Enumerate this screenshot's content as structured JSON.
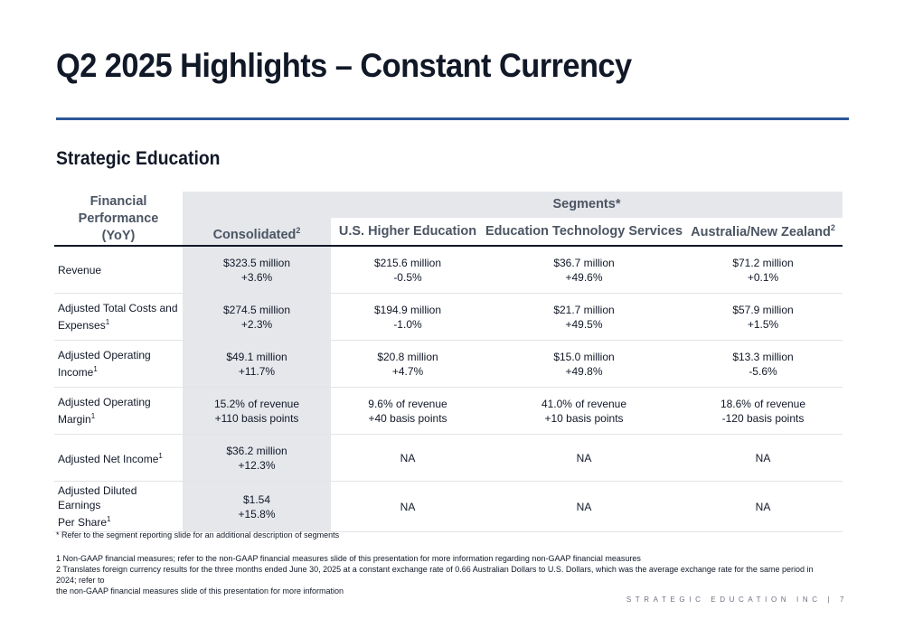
{
  "title": "Q2 2025 Highlights – Constant Currency",
  "section_title": "Strategic Education",
  "table": {
    "fin_perf_header_1": "Financial Performance",
    "fin_perf_header_2": "(YoY)",
    "consolidated_header": "Consolidated",
    "consolidated_sup": "2",
    "segments_header": "Segments*",
    "segment_headers": {
      "us": "U.S. Higher Education",
      "ets": "Education Technology Services",
      "anz": "Australia/New Zealand",
      "anz_sup": "2"
    },
    "rows": [
      {
        "label_1": "Revenue",
        "label_2": "",
        "sup": "",
        "cons_1": "$323.5 million",
        "cons_2": "+3.6%",
        "us_1": "$215.6 million",
        "us_2": "-0.5%",
        "ets_1": "$36.7 million",
        "ets_2": "+49.6%",
        "anz_1": "$71.2 million",
        "anz_2": "+0.1%"
      },
      {
        "label_1": "Adjusted Total Costs and",
        "label_2": "Expenses",
        "sup": "1",
        "cons_1": "$274.5 million",
        "cons_2": "+2.3%",
        "us_1": "$194.9 million",
        "us_2": "-1.0%",
        "ets_1": "$21.7 million",
        "ets_2": "+49.5%",
        "anz_1": "$57.9 million",
        "anz_2": "+1.5%"
      },
      {
        "label_1": "Adjusted Operating Income",
        "label_2": "",
        "sup": "1",
        "cons_1": "$49.1 million",
        "cons_2": "+11.7%",
        "us_1": "$20.8 million",
        "us_2": "+4.7%",
        "ets_1": "$15.0 million",
        "ets_2": "+49.8%",
        "anz_1": "$13.3 million",
        "anz_2": "-5.6%"
      },
      {
        "label_1": "Adjusted Operating Margin",
        "label_2": "",
        "sup": "1",
        "cons_1": "15.2% of revenue",
        "cons_2": "+110 basis points",
        "us_1": "9.6% of revenue",
        "us_2": "+40 basis points",
        "ets_1": "41.0% of revenue",
        "ets_2": "+10 basis points",
        "anz_1": "18.6% of revenue",
        "anz_2": "-120 basis points"
      },
      {
        "label_1": "Adjusted Net Income",
        "label_2": "",
        "sup": "1",
        "cons_1": "$36.2 million",
        "cons_2": "+12.3%",
        "us_1": "NA",
        "us_2": "",
        "ets_1": "NA",
        "ets_2": "",
        "anz_1": "NA",
        "anz_2": ""
      },
      {
        "label_1": "Adjusted Diluted Earnings",
        "label_2": "Per Share",
        "sup": "1",
        "cons_1": "$1.54",
        "cons_2": "+15.8%",
        "us_1": "NA",
        "us_2": "",
        "ets_1": "NA",
        "ets_2": "",
        "anz_1": "NA",
        "anz_2": ""
      }
    ]
  },
  "footnotes": {
    "segments_note": "* Refer to the segment reporting slide for an additional description of segments",
    "note_1": "1 Non-GAAP financial measures; refer to the non-GAAP financial measures slide of this presentation for more information regarding non-GAAP financial measures",
    "note_2a": "2 Translates foreign currency results for the three months ended June 30, 2025 at a constant exchange rate of 0.66 Australian Dollars to U.S. Dollars, which was the average exchange rate for the same period in 2024; refer to",
    "note_2b": "the non-GAAP financial measures slide of this presentation for more information"
  },
  "footer": {
    "company": "STRATEGIC EDUCATION INC",
    "separator": "|",
    "page_number": "7"
  },
  "colors": {
    "accent_rule": "#2b5797",
    "header_gray": "#4b5563",
    "shade": "#e5e7eb"
  }
}
